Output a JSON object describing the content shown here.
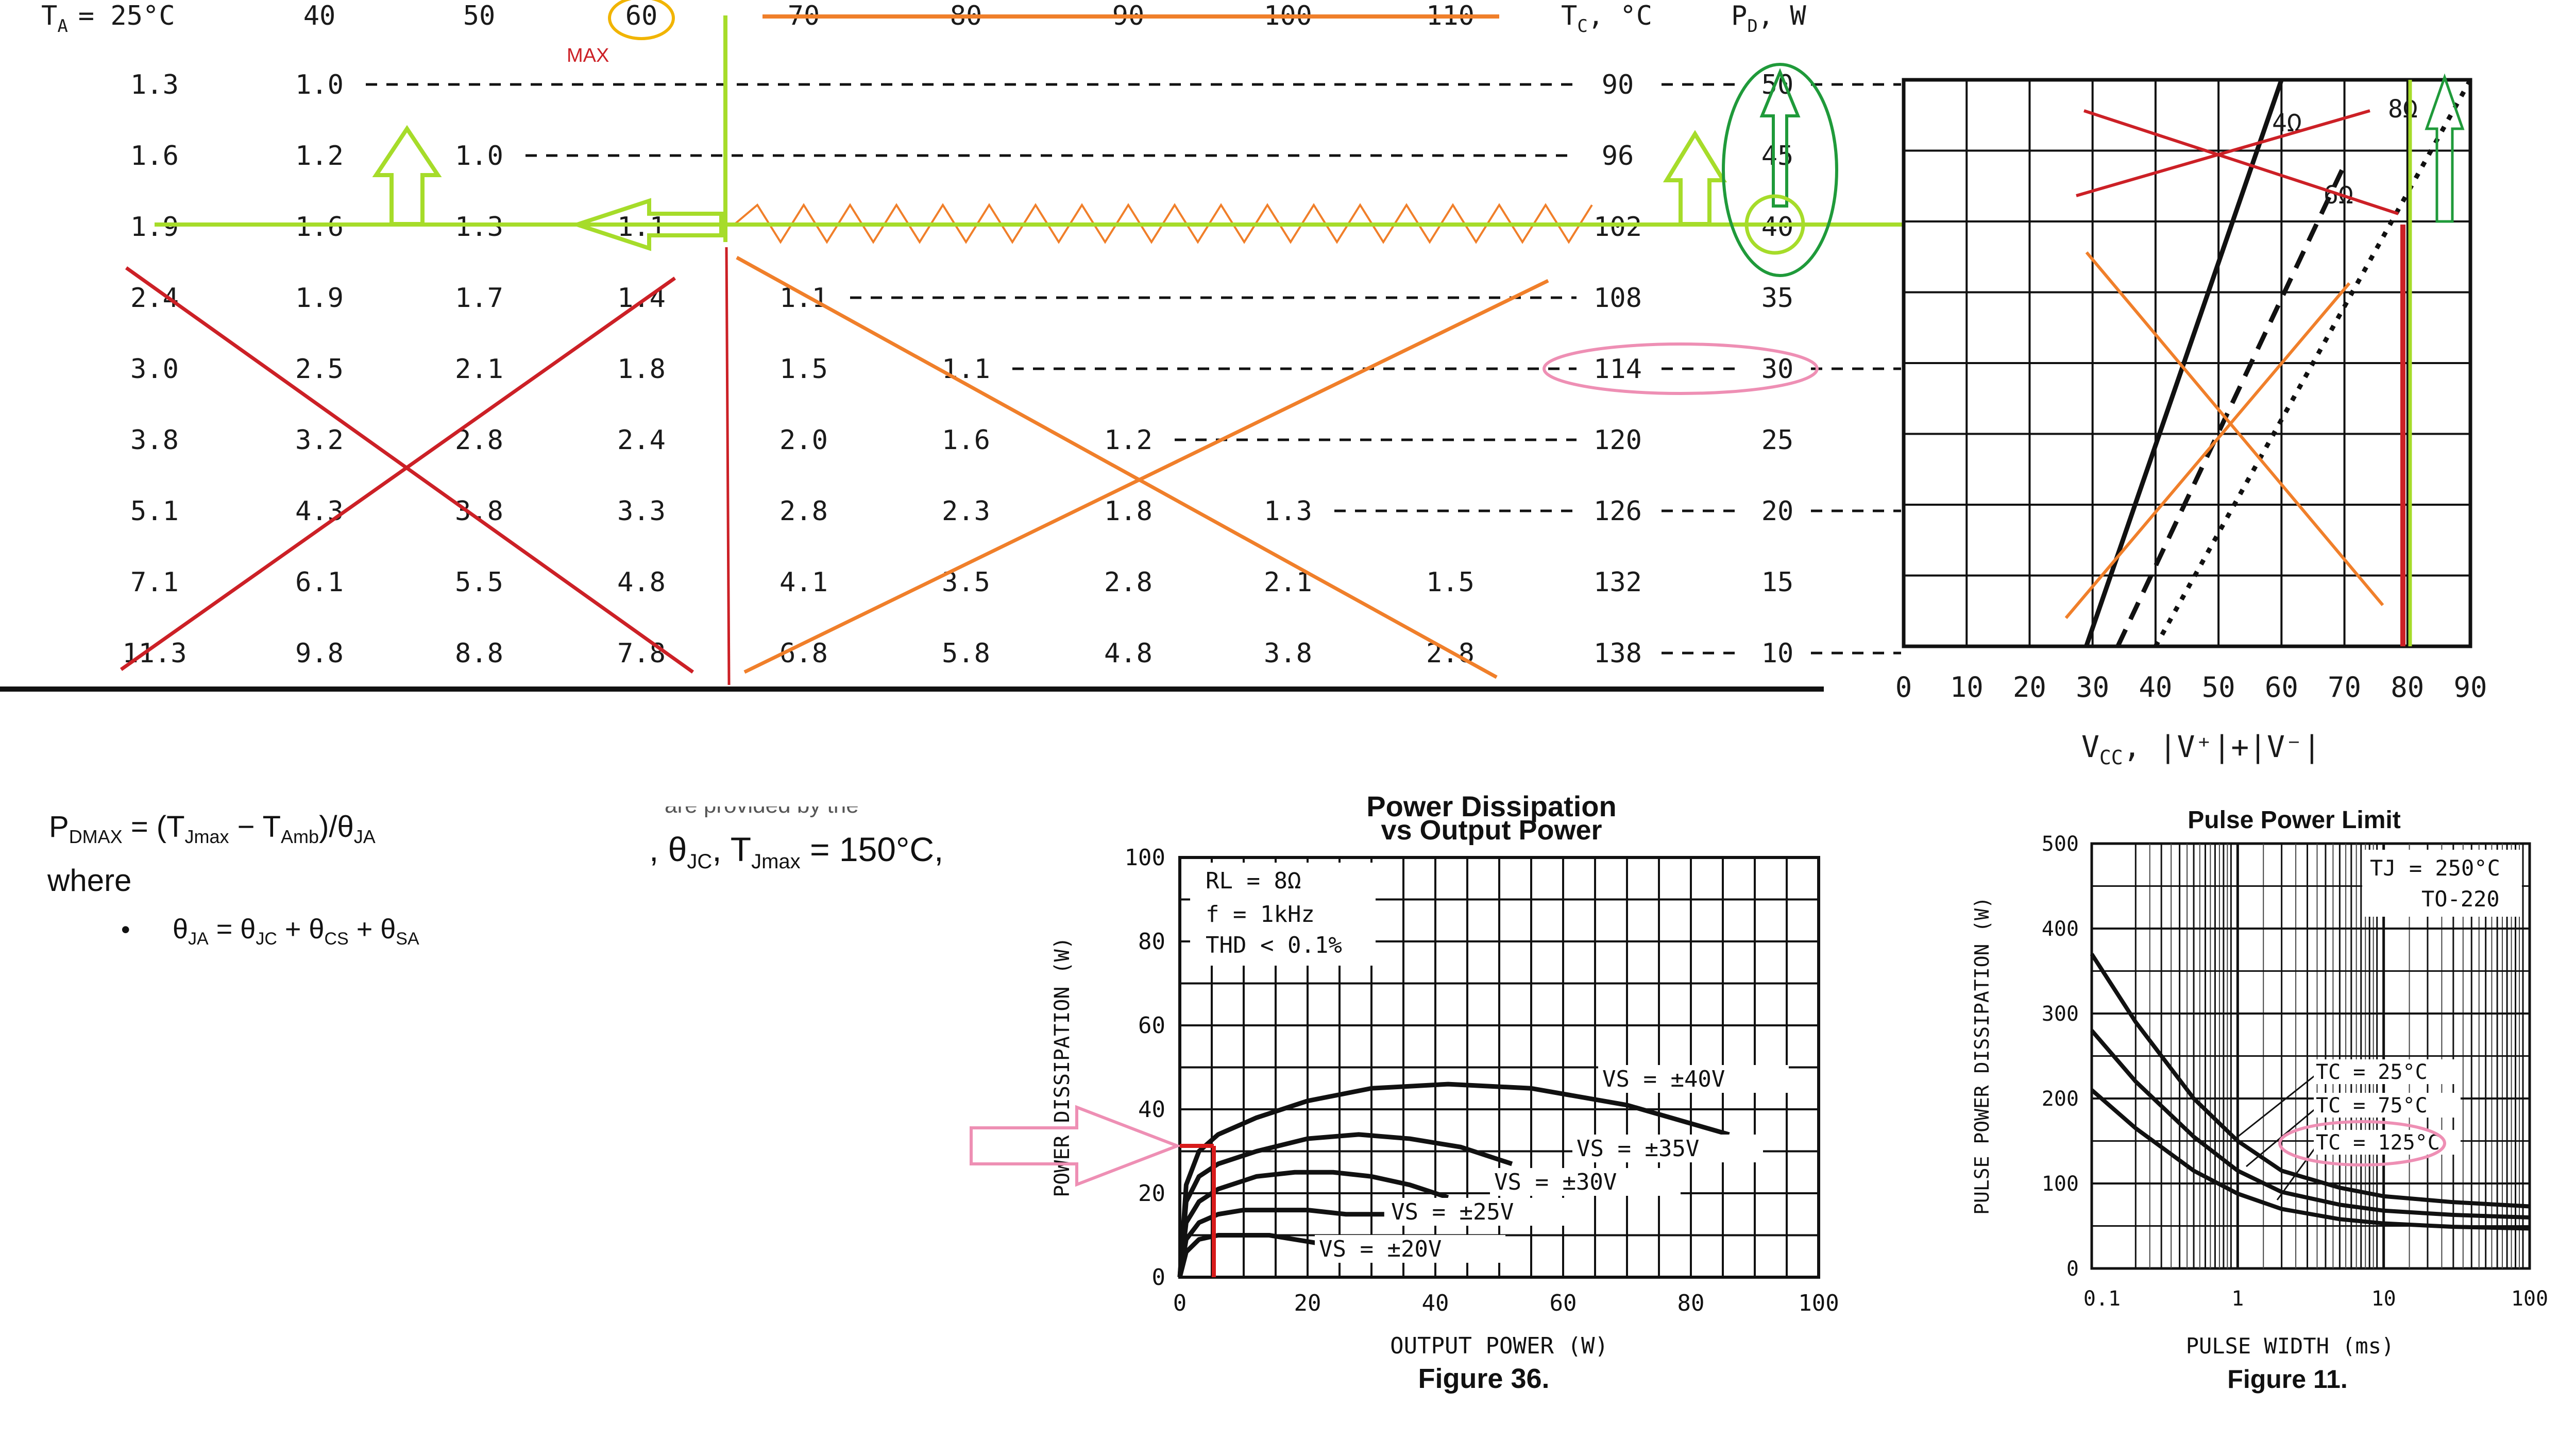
{
  "colors": {
    "text": "#1a1a1a",
    "cross_red": "#cc2026",
    "orange": "#f07f2a",
    "green_line": "#a6dc2a",
    "green_arrow": "#1f9a3a",
    "circle_green": "#1f9a3a",
    "circle_gold": "#f1b400",
    "pink": "#ee8fb4",
    "red_line": "#d81b1b"
  },
  "table": {
    "header_ta": "T",
    "header_ta_sub": "A",
    "header_ta_val": "= 25°C",
    "headers": [
      "40",
      "50",
      "60",
      "70",
      "80",
      "90",
      "100",
      "110"
    ],
    "header_tc": "T",
    "header_tc_sub": "C",
    "header_tc_unit": ", °C",
    "header_pd": "P",
    "header_pd_sub": "D",
    "header_pd_unit": ", W",
    "max_label": "MAX",
    "rows": [
      {
        "cells": [
          "1.3",
          "1.0",
          "",
          "",
          "",
          "",
          "",
          "",
          ""
        ],
        "tc": "90",
        "pd": "50"
      },
      {
        "cells": [
          "1.6",
          "1.2",
          "1.0",
          "",
          "",
          "",
          "",
          "",
          ""
        ],
        "tc": "96",
        "pd": "45"
      },
      {
        "cells": [
          "1.9",
          "1.6",
          "1.3",
          "1.1",
          "",
          "",
          "",
          "",
          ""
        ],
        "tc": "102",
        "pd": "40"
      },
      {
        "cells": [
          "2.4",
          "1.9",
          "1.7",
          "1.4",
          "1.1",
          "",
          "",
          "",
          ""
        ],
        "tc": "108",
        "pd": "35"
      },
      {
        "cells": [
          "3.0",
          "2.5",
          "2.1",
          "1.8",
          "1.5",
          "1.1",
          "",
          "",
          ""
        ],
        "tc": "114",
        "pd": "30"
      },
      {
        "cells": [
          "3.8",
          "3.2",
          "2.8",
          "2.4",
          "2.0",
          "1.6",
          "1.2",
          "",
          ""
        ],
        "tc": "120",
        "pd": "25"
      },
      {
        "cells": [
          "5.1",
          "4.3",
          "3.8",
          "3.3",
          "2.8",
          "2.3",
          "1.8",
          "1.3",
          ""
        ],
        "tc": "126",
        "pd": "20"
      },
      {
        "cells": [
          "7.1",
          "6.1",
          "5.5",
          "4.8",
          "4.1",
          "3.5",
          "2.8",
          "2.1",
          "1.5"
        ],
        "tc": "132",
        "pd": "15"
      },
      {
        "cells": [
          "11.3",
          "9.8",
          "8.8",
          "7.8",
          "6.8",
          "5.8",
          "4.8",
          "3.8",
          "2.8"
        ],
        "tc": "138",
        "pd": "10"
      }
    ]
  },
  "formulas": {
    "pdmax": "P",
    "pdmax_sub": "DMAX",
    "pdmax_eq": " = (T",
    "tjmax_sub": "Jmax",
    "minus": " − T",
    "tamb_sub": "Amb",
    "div": ")/θ",
    "ja_sub": "JA",
    "where": "where",
    "bullet": "•",
    "theta_ja": "θ",
    "theta_ja_sub": "JA",
    "eq2": " = θ",
    "jc_sub": "JC",
    "plus1": " + θ",
    "cs_sub": "CS",
    "plus2": " + θ",
    "sa_sub": "SA",
    "frag_top": "are provided by the",
    "frag_line_a": ", θ",
    "frag_line_sub": "JC",
    "frag_line_b": ", T",
    "frag_line_sub2": "Jmax",
    "frag_line_c": " = 150°C,"
  },
  "chart_data": [
    {
      "type": "line",
      "title": "",
      "xlabel": "V",
      "xlabel_sub": "CC",
      "xlabel_rest": ", |V⁺|+|V⁻|",
      "ylabel": "",
      "x_ticks": [
        "0",
        "10",
        "20",
        "30",
        "40",
        "50",
        "60",
        "70",
        "80",
        "90"
      ],
      "xlim": [
        0,
        90
      ],
      "ylim": [
        10,
        50
      ],
      "grid": true,
      "series": [
        {
          "name": "4Ω",
          "style": "solid",
          "x": [
            29,
            60
          ],
          "y": [
            10,
            50
          ]
        },
        {
          "name": "6Ω",
          "style": "dashed",
          "x": [
            34,
            70
          ],
          "y": [
            10,
            44
          ]
        },
        {
          "name": "8Ω",
          "style": "dotted",
          "x": [
            40,
            90
          ],
          "y": [
            10,
            50
          ]
        }
      ]
    },
    {
      "type": "line",
      "title": "Power Dissipation",
      "subtitle": "vs Output Power",
      "xlabel": "OUTPUT POWER (W)",
      "ylabel": "POWER DISSIPATION (W)",
      "caption": "Figure 36.",
      "x_ticks": [
        "0",
        "20",
        "40",
        "60",
        "80",
        "100"
      ],
      "y_ticks": [
        "0",
        "20",
        "40",
        "60",
        "80",
        "100"
      ],
      "xlim": [
        0,
        100
      ],
      "ylim": [
        0,
        100
      ],
      "grid": true,
      "conditions": [
        "RL = 8Ω",
        "f = 1kHz",
        "THD < 0.1%"
      ],
      "series": [
        {
          "name": "VS = ±40V",
          "x": [
            0,
            1,
            3,
            6,
            12,
            20,
            30,
            42,
            55,
            70,
            86
          ],
          "y": [
            0,
            22,
            30,
            34,
            38,
            42,
            45,
            46,
            45,
            41,
            34
          ]
        },
        {
          "name": "VS = ±35V",
          "x": [
            0,
            1,
            3,
            6,
            12,
            20,
            28,
            36,
            44,
            52
          ],
          "y": [
            0,
            18,
            24,
            27,
            30,
            33,
            34,
            33,
            31,
            27
          ]
        },
        {
          "name": "VS = ±30V",
          "x": [
            0,
            1,
            3,
            6,
            12,
            18,
            24,
            30,
            36,
            42
          ],
          "y": [
            0,
            13,
            18,
            21,
            24,
            25,
            25,
            24,
            22,
            19
          ]
        },
        {
          "name": "VS = ±25V",
          "x": [
            0,
            1,
            3,
            6,
            10,
            15,
            20,
            26,
            32
          ],
          "y": [
            0,
            9,
            13,
            15,
            16,
            16,
            16,
            15,
            15
          ]
        },
        {
          "name": "VS = ±20V",
          "x": [
            0,
            1,
            3,
            6,
            10,
            14,
            18,
            22
          ],
          "y": [
            0,
            6,
            9,
            10,
            10,
            10,
            9,
            8
          ]
        }
      ]
    },
    {
      "type": "line",
      "title": "Pulse Power Limit",
      "xlabel": "PULSE WIDTH (ms)",
      "ylabel": "PULSE POWER DISSIPATION (W)",
      "caption": "Figure 11.",
      "x_scale": "log",
      "x_ticks": [
        "0.1",
        "1",
        "10",
        "100"
      ],
      "y_ticks": [
        "0",
        "100",
        "200",
        "300",
        "400",
        "500"
      ],
      "xlim": [
        0.1,
        100
      ],
      "ylim": [
        0,
        500
      ],
      "grid": true,
      "conditions": [
        "TJ = 250°C",
        "TO-220"
      ],
      "series": [
        {
          "name": "TC = 25°C",
          "x": [
            0.1,
            0.2,
            0.5,
            1,
            2,
            5,
            10,
            30,
            100
          ],
          "y": [
            370,
            290,
            200,
            150,
            115,
            95,
            85,
            78,
            73
          ]
        },
        {
          "name": "TC = 75°C",
          "x": [
            0.1,
            0.2,
            0.5,
            1,
            2,
            5,
            10,
            30,
            100
          ],
          "y": [
            280,
            220,
            155,
            115,
            90,
            75,
            68,
            63,
            60
          ]
        },
        {
          "name": "TC = 125°C",
          "x": [
            0.1,
            0.2,
            0.5,
            1,
            2,
            5,
            10,
            30,
            100
          ],
          "y": [
            210,
            165,
            115,
            88,
            70,
            58,
            53,
            49,
            47
          ]
        }
      ]
    }
  ]
}
